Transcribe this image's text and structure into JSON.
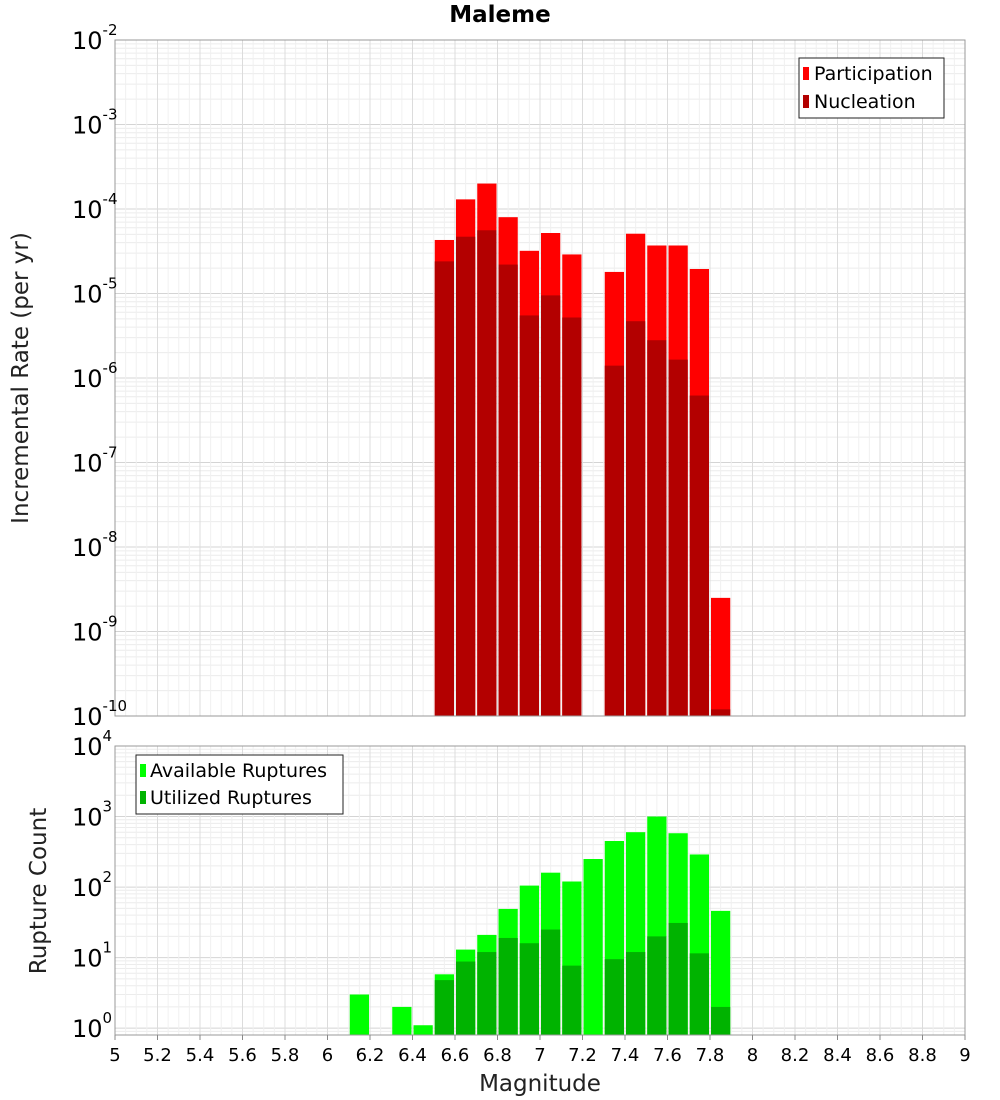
{
  "chart_data": [
    {
      "type": "bar",
      "title": "Maleme",
      "xlabel": "",
      "ylabel": "Incremental Rate (per yr)",
      "yscale": "log",
      "ylim": [
        1e-10,
        0.01
      ],
      "xlim": [
        5,
        9
      ],
      "grid": true,
      "legend_position": "top-right",
      "y_tick_labels": [
        {
          "base": "10",
          "exp": "-10",
          "value": 1e-10
        },
        {
          "base": "10",
          "exp": "-9",
          "value": 1e-09
        },
        {
          "base": "10",
          "exp": "-8",
          "value": 1e-08
        },
        {
          "base": "10",
          "exp": "-7",
          "value": 1e-07
        },
        {
          "base": "10",
          "exp": "-6",
          "value": 1e-06
        },
        {
          "base": "10",
          "exp": "-5",
          "value": 1e-05
        },
        {
          "base": "10",
          "exp": "-4",
          "value": 0.0001
        },
        {
          "base": "10",
          "exp": "-3",
          "value": 0.001
        },
        {
          "base": "10",
          "exp": "-2",
          "value": 0.01
        }
      ],
      "x": [
        6.55,
        6.65,
        6.75,
        6.85,
        6.95,
        7.05,
        7.15,
        7.35,
        7.45,
        7.55,
        7.65,
        7.75,
        7.85
      ],
      "series": [
        {
          "name": "Participation",
          "color": "#ff0000",
          "values": [
            4.3e-05,
            0.00013,
            0.0002,
            8e-05,
            3.2e-05,
            5.2e-05,
            2.9e-05,
            1.8e-05,
            5.1e-05,
            3.7e-05,
            3.7e-05,
            1.95e-05,
            2.5e-09
          ]
        },
        {
          "name": "Nucleation",
          "color": "#b30000",
          "values": [
            2.4e-05,
            4.7e-05,
            5.6e-05,
            2.2e-05,
            5.5e-06,
            9.5e-06,
            5.2e-06,
            1.4e-06,
            4.7e-06,
            2.8e-06,
            1.65e-06,
            6.2e-07,
            1.2e-10
          ]
        }
      ]
    },
    {
      "type": "bar",
      "title": "",
      "xlabel": "Magnitude",
      "ylabel": "Rupture Count",
      "yscale": "log",
      "ylim": [
        0.8,
        10000
      ],
      "xlim": [
        5,
        9
      ],
      "grid": true,
      "legend_position": "top-left",
      "y_tick_labels": [
        {
          "base": "10",
          "exp": "0",
          "value": 1
        },
        {
          "base": "10",
          "exp": "1",
          "value": 10
        },
        {
          "base": "10",
          "exp": "2",
          "value": 100
        },
        {
          "base": "10",
          "exp": "3",
          "value": 1000
        },
        {
          "base": "10",
          "exp": "4",
          "value": 10000
        }
      ],
      "x_tick_labels": [
        "5",
        "5.2",
        "5.4",
        "5.6",
        "5.8",
        "6",
        "6.2",
        "6.4",
        "6.6",
        "6.8",
        "7",
        "7.2",
        "7.4",
        "7.6",
        "7.8",
        "8",
        "8.2",
        "8.4",
        "8.6",
        "8.8",
        "9"
      ],
      "x": [
        6.15,
        6.35,
        6.45,
        6.55,
        6.65,
        6.75,
        6.85,
        6.95,
        7.05,
        7.15,
        7.25,
        7.35,
        7.45,
        7.55,
        7.65,
        7.75,
        7.85
      ],
      "series": [
        {
          "name": "Available Ruptures",
          "color": "#00ff00",
          "values": [
            3,
            2,
            1.1,
            5.8,
            13,
            21,
            49,
            105,
            160,
            120,
            250,
            450,
            600,
            1000,
            580,
            290,
            46
          ]
        },
        {
          "name": "Utilized Ruptures",
          "color": "#00b300",
          "values": [
            null,
            null,
            null,
            4.8,
            8.8,
            12,
            19,
            16,
            25,
            7.7,
            null,
            9.5,
            12,
            20,
            31,
            11.5,
            2
          ]
        }
      ]
    }
  ]
}
